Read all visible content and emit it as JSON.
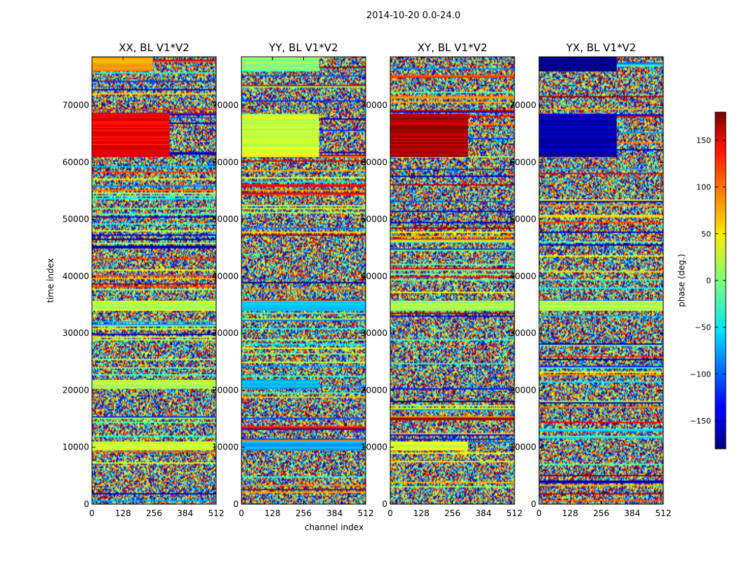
{
  "chart_data": {
    "type": "heatmap",
    "suptitle": "2014-10-20 0.0-24.0",
    "xlabel": "channel index",
    "ylabel": "time index",
    "xlim": [
      0,
      512
    ],
    "ylim": [
      0,
      78500
    ],
    "x_ticks": [
      0,
      128,
      256,
      384,
      512
    ],
    "x_tick_labels": [
      "0",
      "128",
      "256",
      "384",
      "512"
    ],
    "y_ticks": [
      0,
      10000,
      20000,
      30000,
      40000,
      50000,
      60000,
      70000
    ],
    "y_tick_labels": [
      "0",
      "10000",
      "20000",
      "30000",
      "40000",
      "50000",
      "60000",
      "70000"
    ],
    "panels": [
      {
        "title": "XX, BL V1*V2",
        "bands": [
          {
            "y0": 61000,
            "y1": 68500,
            "x1": 320,
            "phase": 140
          },
          {
            "y0": 76000,
            "y1": 78500,
            "x1": 250,
            "phase": 80
          },
          {
            "y0": 34000,
            "y1": 35700,
            "x1": 512,
            "phase": 20
          },
          {
            "y0": 20300,
            "y1": 21800,
            "x1": 512,
            "phase": 20
          },
          {
            "y0": 9500,
            "y1": 11000,
            "x1": 512,
            "phase": 30
          }
        ]
      },
      {
        "title": "YY, BL V1*V2",
        "bands": [
          {
            "y0": 61000,
            "y1": 68500,
            "x1": 320,
            "phase": 25
          },
          {
            "y0": 76000,
            "y1": 78500,
            "x1": 320,
            "phase": 0
          },
          {
            "y0": 34000,
            "y1": 35700,
            "x1": 512,
            "phase": -70
          },
          {
            "y0": 20300,
            "y1": 21800,
            "x1": 320,
            "phase": -70
          },
          {
            "y0": 9500,
            "y1": 11000,
            "x1": 512,
            "phase": -75
          }
        ]
      },
      {
        "title": "XY, BL V1*V2",
        "bands": [
          {
            "y0": 61000,
            "y1": 68500,
            "x1": 320,
            "phase": 165
          },
          {
            "y0": 34000,
            "y1": 35700,
            "x1": 512,
            "phase": 15
          },
          {
            "y0": 9500,
            "y1": 11000,
            "x1": 320,
            "phase": 35
          }
        ]
      },
      {
        "title": "YX, BL V1*V2",
        "bands": [
          {
            "y0": 61000,
            "y1": 68500,
            "x1": 320,
            "phase": -165
          },
          {
            "y0": 76000,
            "y1": 78500,
            "x1": 320,
            "phase": -170
          },
          {
            "y0": 34000,
            "y1": 35700,
            "x1": 512,
            "phase": 10
          }
        ]
      }
    ],
    "colorbar": {
      "label": "phase (deg.)",
      "range": [
        -180,
        180
      ],
      "ticks": [
        -150,
        -100,
        -50,
        0,
        50,
        100,
        150
      ],
      "tick_labels": [
        "−150",
        "−100",
        "−50",
        "0",
        "50",
        "100",
        "150"
      ],
      "colormap": "jet"
    }
  }
}
